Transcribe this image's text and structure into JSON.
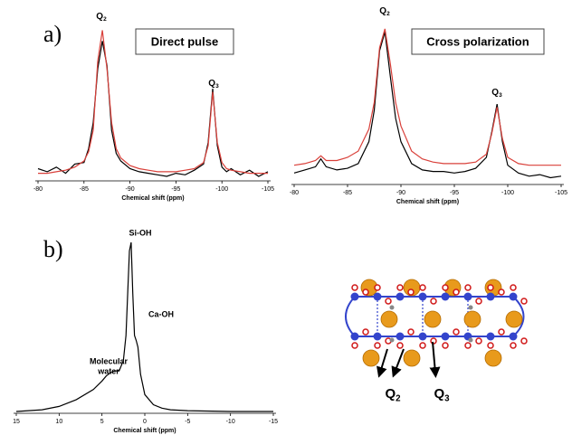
{
  "panel_labels": [
    "a)",
    "b)"
  ],
  "chart_data": [
    {
      "type": "line",
      "title": "Direct pulse",
      "xlabel": "Chemical shift (ppm)",
      "x": [
        -80,
        -81,
        -82,
        -83,
        -84,
        -85,
        -85.5,
        -86,
        -86.5,
        -87,
        -87.5,
        -88,
        -88.5,
        -89,
        -90,
        -91,
        -92,
        -93,
        -94,
        -95,
        -96,
        -97,
        -98,
        -98.5,
        -99,
        -99.5,
        -100,
        -100.5,
        -101,
        -102,
        -103,
        -104,
        -105
      ],
      "series": [
        {
          "color": "#000000",
          "values": [
            5,
            3,
            6,
            2,
            8,
            9,
            18,
            35,
            70,
            88,
            72,
            30,
            15,
            10,
            5,
            3,
            2,
            1,
            0,
            2,
            1,
            4,
            8,
            22,
            57,
            20,
            6,
            3,
            5,
            1,
            4,
            0,
            3
          ]
        },
        {
          "color": "#d9403a",
          "values": [
            2,
            2,
            3,
            4,
            6,
            10,
            16,
            30,
            75,
            95,
            70,
            35,
            18,
            12,
            7,
            5,
            4,
            3,
            3,
            3,
            4,
            5,
            9,
            20,
            55,
            22,
            9,
            5,
            4,
            3,
            2,
            2,
            2
          ]
        }
      ],
      "annotations": [
        {
          "base": "Q",
          "sub": "2"
        },
        {
          "base": "Q",
          "sub": "3"
        }
      ],
      "xlim": [
        -80,
        -105
      ],
      "xticks": [
        -80,
        -85,
        -90,
        -95,
        -100,
        -105
      ],
      "ylim": [
        0,
        100
      ]
    },
    {
      "type": "line",
      "title": "Cross polarization",
      "xlabel": "Chemical shift (ppm)",
      "x": [
        -80,
        -81,
        -82,
        -82.5,
        -83,
        -84,
        -85,
        -86,
        -87,
        -87.5,
        -88,
        -88.5,
        -89,
        -89.5,
        -90,
        -91,
        -92,
        -93,
        -94,
        -95,
        -96,
        -97,
        -98,
        -98.5,
        -99,
        -99.5,
        -100,
        -101,
        -102,
        -103,
        -104,
        -105
      ],
      "series": [
        {
          "color": "#000000",
          "values": [
            0,
            2,
            4,
            9,
            4,
            2,
            3,
            6,
            20,
            40,
            78,
            90,
            62,
            35,
            20,
            6,
            2,
            1,
            1,
            0,
            1,
            3,
            10,
            26,
            44,
            20,
            5,
            0,
            -2,
            -1,
            -3,
            -2
          ]
        },
        {
          "color": "#d9403a",
          "values": [
            5,
            6,
            8,
            11,
            8,
            8,
            10,
            14,
            28,
            45,
            80,
            92,
            70,
            45,
            30,
            14,
            9,
            7,
            6,
            6,
            6,
            7,
            12,
            25,
            42,
            22,
            10,
            6,
            5,
            5,
            5,
            5
          ]
        }
      ],
      "annotations": [
        {
          "base": "Q",
          "sub": "2"
        },
        {
          "base": "Q",
          "sub": "3"
        }
      ],
      "xlim": [
        -80,
        -105
      ],
      "xticks": [
        -80,
        -85,
        -90,
        -95,
        -100,
        -105
      ],
      "ylim": [
        -5,
        100
      ]
    },
    {
      "type": "line",
      "xlabel": "Chemical shift (ppm)",
      "x": [
        15,
        12,
        10,
        8,
        6,
        5,
        4.5,
        4,
        3.5,
        3,
        2.5,
        2.2,
        2,
        1.8,
        1.6,
        1.4,
        1.2,
        1,
        0.8,
        0.5,
        0,
        -1,
        -2,
        -3,
        -5,
        -10,
        -15
      ],
      "series": [
        {
          "color": "#000000",
          "values": [
            0,
            1,
            3,
            7,
            13,
            18,
            21,
            23,
            24,
            24,
            30,
            45,
            70,
            95,
            100,
            70,
            45,
            42,
            38,
            22,
            10,
            4,
            2,
            1,
            0.5,
            0,
            0
          ]
        }
      ],
      "annotations": [
        {
          "text": "Si-OH"
        },
        {
          "text": "Ca-OH"
        },
        {
          "lines": [
            "Molecular",
            "water"
          ]
        }
      ],
      "xlim": [
        15,
        -15
      ],
      "xticks": [
        15,
        10,
        5,
        0,
        -5,
        -10,
        -15
      ],
      "ylim": [
        0,
        100
      ]
    }
  ],
  "structure": {
    "labels": [
      {
        "base": "Q",
        "sub": "2"
      },
      {
        "base": "Q",
        "sub": "3"
      }
    ]
  }
}
